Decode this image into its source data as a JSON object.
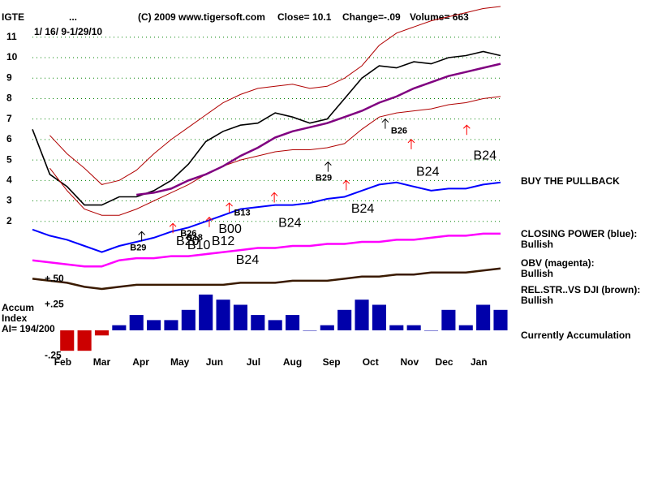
{
  "chart_data": [
    {
      "type": "line",
      "title": "IGTE",
      "title_marker": "...",
      "copyright": "(C) 2009 www.tigersoft.com",
      "close": "Close=  10.1",
      "change": "Change=-.09",
      "volume": "Volume= 663",
      "subtitle": "1/ 16/ 9-1/29/10",
      "notes": [
        "BUY THE PULLBACK",
        "CLOSING POWER (blue):",
        "Bullish",
        "OBV (magenta):",
        "Bullish",
        "REL.STR..VS DJI (brown):",
        "Bullish",
        "Currently Accumulation"
      ],
      "xlim": [
        0,
        54
      ],
      "xticks": [
        {
          "value": 3.5,
          "label": "Feb"
        },
        {
          "value": 8,
          "label": "Mar"
        },
        {
          "value": 12.5,
          "label": "Apr"
        },
        {
          "value": 17,
          "label": "May"
        },
        {
          "value": 21,
          "label": "Jun"
        },
        {
          "value": 25.5,
          "label": "Jul"
        },
        {
          "value": 30,
          "label": "Aug"
        },
        {
          "value": 34.5,
          "label": "Sep"
        },
        {
          "value": 39,
          "label": "Oct"
        },
        {
          "value": 43.5,
          "label": "Nov"
        },
        {
          "value": 47.5,
          "label": "Dec"
        },
        {
          "value": 51.5,
          "label": "Jan"
        }
      ],
      "ylim": [
        -1.5,
        12.5
      ],
      "yticks": [
        2,
        3,
        4,
        5,
        6,
        7,
        8,
        9,
        10,
        11
      ],
      "grid": true,
      "grid_color": "#008000",
      "x": [
        0,
        2,
        4,
        6,
        8,
        10,
        12,
        14,
        16,
        18,
        20,
        22,
        24,
        26,
        28,
        30,
        32,
        34,
        36,
        38,
        40,
        42,
        44,
        46,
        48,
        50,
        52,
        54
      ],
      "series": [
        {
          "color": "#000000",
          "width": 1.6,
          "values": [
            6.5,
            4.3,
            3.7,
            2.8,
            2.8,
            3.2,
            3.2,
            3.5,
            4.0,
            4.8,
            5.9,
            6.4,
            6.7,
            6.8,
            7.3,
            7.1,
            6.8,
            7.0,
            8.0,
            9.0,
            9.6,
            9.5,
            9.8,
            9.7,
            10.0,
            10.1,
            10.3,
            10.1
          ]
        },
        {
          "color": "#b00000",
          "width": 1,
          "values": [
            null,
            6.2,
            5.3,
            4.6,
            3.8,
            4.0,
            4.5,
            5.3,
            6.0,
            6.6,
            7.2,
            7.8,
            8.2,
            8.5,
            8.6,
            8.7,
            8.5,
            8.6,
            9.0,
            9.6,
            10.6,
            11.2,
            11.5,
            11.8,
            12.0,
            12.2,
            12.4,
            12.5
          ]
        },
        {
          "color": "#b00000",
          "width": 1,
          "values": [
            null,
            4.6,
            3.5,
            2.6,
            2.3,
            2.3,
            2.6,
            3.0,
            3.4,
            3.8,
            4.3,
            4.7,
            5.0,
            5.2,
            5.4,
            5.5,
            5.5,
            5.6,
            5.8,
            6.5,
            7.1,
            7.3,
            7.4,
            7.5,
            7.7,
            7.8,
            8.0,
            8.1
          ]
        },
        {
          "color": "#800080",
          "width": 2.5,
          "values": [
            null,
            null,
            null,
            null,
            null,
            null,
            3.3,
            3.4,
            3.6,
            4.0,
            4.3,
            4.7,
            5.2,
            5.6,
            6.1,
            6.4,
            6.6,
            6.8,
            7.1,
            7.4,
            7.8,
            8.1,
            8.5,
            8.8,
            9.1,
            9.3,
            9.5,
            9.7
          ]
        },
        {
          "color": "#0000ff",
          "width": 2,
          "values": [
            1.6,
            1.3,
            1.1,
            0.8,
            0.5,
            0.8,
            1.0,
            1.2,
            1.5,
            1.7,
            2.0,
            2.3,
            2.6,
            2.7,
            2.8,
            2.8,
            2.9,
            3.1,
            3.2,
            3.5,
            3.8,
            3.9,
            3.7,
            3.5,
            3.6,
            3.6,
            3.8,
            3.9
          ]
        },
        {
          "color": "#ff00ff",
          "width": 2.5,
          "values": [
            0.1,
            0.0,
            -0.1,
            -0.2,
            -0.2,
            0.1,
            0.2,
            0.2,
            0.3,
            0.3,
            0.4,
            0.5,
            0.6,
            0.7,
            0.7,
            0.8,
            0.8,
            0.9,
            0.9,
            1.0,
            1.0,
            1.1,
            1.1,
            1.2,
            1.3,
            1.3,
            1.4,
            1.4
          ]
        },
        {
          "color": "#3a1a00",
          "width": 2.5,
          "values": [
            -0.8,
            -0.9,
            -1.0,
            -1.2,
            -1.3,
            -1.2,
            -1.1,
            -1.1,
            -1.1,
            -1.1,
            -1.1,
            -1.1,
            -1.0,
            -1.0,
            -1.0,
            -0.9,
            -0.9,
            -0.9,
            -0.8,
            -0.7,
            -0.7,
            -0.6,
            -0.6,
            -0.5,
            -0.5,
            -0.5,
            -0.4,
            -0.3
          ]
        }
      ],
      "annotations": [
        {
          "text": "B29",
          "x": 12.2,
          "y": 0.7,
          "size": "small"
        },
        {
          "text": "B26",
          "x": 18.0,
          "y": 1.4,
          "size": "small"
        },
        {
          "text": "B18",
          "x": 18.7,
          "y": 1.2,
          "size": "small"
        },
        {
          "text": "B20",
          "x": 17.9,
          "y": 1.0,
          "size": "large"
        },
        {
          "text": "B10",
          "x": 19.2,
          "y": 0.8,
          "size": "large"
        },
        {
          "text": "B12",
          "x": 22.0,
          "y": 1.0,
          "size": "large"
        },
        {
          "text": "B00",
          "x": 22.8,
          "y": 1.6,
          "size": "large"
        },
        {
          "text": "B13",
          "x": 24.2,
          "y": 2.4,
          "size": "small"
        },
        {
          "text": "B24",
          "x": 29.7,
          "y": 1.9,
          "size": "large"
        },
        {
          "text": "B24",
          "x": 24.8,
          "y": 0.1,
          "size": "large"
        },
        {
          "text": "B29",
          "x": 33.6,
          "y": 4.1,
          "size": "small"
        },
        {
          "text": "B24",
          "x": 38.1,
          "y": 2.6,
          "size": "large"
        },
        {
          "text": "B24",
          "x": 45.6,
          "y": 4.4,
          "size": "large"
        },
        {
          "text": "B26",
          "x": 42.3,
          "y": 6.4,
          "size": "small"
        },
        {
          "text": "B24",
          "x": 52.2,
          "y": 5.2,
          "size": "large"
        }
      ],
      "arrows": [
        {
          "x": 12.6,
          "y": 1.5,
          "color": "#000000"
        },
        {
          "x": 34.1,
          "y": 4.9,
          "color": "#000000"
        },
        {
          "x": 40.7,
          "y": 7.0,
          "color": "#000000"
        },
        {
          "x": 16.2,
          "y": 1.9,
          "color": "#ff0000"
        },
        {
          "x": 20.4,
          "y": 2.2,
          "color": "#ff0000"
        },
        {
          "x": 22.7,
          "y": 2.9,
          "color": "#ff0000"
        },
        {
          "x": 27.9,
          "y": 3.4,
          "color": "#ff0000"
        },
        {
          "x": 36.2,
          "y": 4.0,
          "color": "#ff0000"
        },
        {
          "x": 43.7,
          "y": 6.0,
          "color": "#ff0000"
        },
        {
          "x": 50.1,
          "y": 6.7,
          "color": "#ff0000"
        }
      ]
    },
    {
      "type": "bar",
      "title_lines": [
        "Accum",
        "Index",
        "AI= 194/200"
      ],
      "xlim": [
        0,
        54
      ],
      "ylim": [
        -0.27,
        0.5
      ],
      "yticks": [
        {
          "value": 0.5,
          "label": "+.50"
        },
        {
          "value": 0.25,
          "label": "+.25"
        },
        {
          "value": -0.25,
          "label": "-.25"
        }
      ],
      "color": "#0000aa",
      "negative_color": "#cc0000",
      "x": [
        0,
        2,
        4,
        6,
        8,
        10,
        12,
        14,
        16,
        18,
        20,
        22,
        24,
        26,
        28,
        30,
        32,
        34,
        36,
        38,
        40,
        42,
        44,
        46,
        48,
        50,
        52,
        54
      ],
      "values": [
        null,
        null,
        -0.2,
        -0.2,
        -0.05,
        0.05,
        0.15,
        0.1,
        0.1,
        0.2,
        0.35,
        0.3,
        0.25,
        0.15,
        0.1,
        0.15,
        0.0,
        0.05,
        0.2,
        0.3,
        0.25,
        0.05,
        0.05,
        0.0,
        0.2,
        0.05,
        0.25,
        0.2
      ]
    }
  ]
}
